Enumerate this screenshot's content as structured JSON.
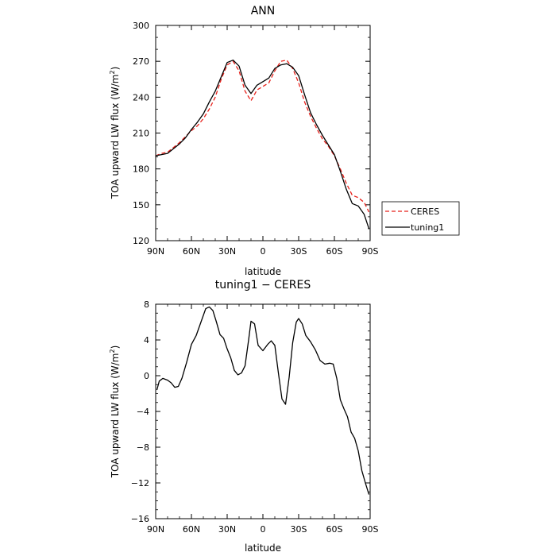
{
  "chart_data": [
    {
      "type": "line",
      "title": "ANN",
      "xlabel": "latitude",
      "ylabel": "TOA upward LW flux (W/m",
      "ylabel_sup": "2",
      "ylabel_close": ")",
      "xlim": [
        90,
        -90
      ],
      "ylim": [
        120,
        300
      ],
      "xticks": [
        90,
        60,
        30,
        0,
        -30,
        -60,
        -90
      ],
      "xtick_labels": [
        "90N",
        "60N",
        "30N",
        "0",
        "30S",
        "60S",
        "90S"
      ],
      "yticks": [
        120,
        150,
        180,
        210,
        240,
        270,
        300
      ],
      "ytick_labels": [
        "120",
        "150",
        "180",
        "210",
        "240",
        "270",
        "300"
      ],
      "legend_position": "outside-right",
      "series": [
        {
          "name": "CERES",
          "color": "#e8201a",
          "dash": "dashed",
          "x": [
            90,
            85,
            80,
            75,
            70,
            65,
            60,
            55,
            50,
            45,
            40,
            35,
            30,
            25,
            20,
            15,
            10,
            5,
            0,
            -5,
            -10,
            -15,
            -20,
            -25,
            -30,
            -35,
            -40,
            -45,
            -50,
            -55,
            -60,
            -65,
            -70,
            -75,
            -80,
            -85,
            -89
          ],
          "y": [
            191,
            193,
            194,
            198,
            202,
            207,
            212,
            216,
            222,
            230,
            240,
            255,
            267,
            270,
            262,
            245,
            237,
            246,
            249,
            252,
            262,
            270,
            271,
            264,
            252,
            236,
            224,
            214,
            205,
            199,
            191,
            180,
            168,
            158,
            156,
            152,
            144
          ]
        },
        {
          "name": "tuning1",
          "color": "#000000",
          "dash": "solid",
          "x": [
            90,
            85,
            80,
            75,
            70,
            65,
            60,
            55,
            50,
            45,
            40,
            35,
            30,
            25,
            20,
            15,
            10,
            5,
            0,
            -5,
            -10,
            -15,
            -20,
            -25,
            -30,
            -35,
            -40,
            -45,
            -50,
            -55,
            -60,
            -65,
            -70,
            -75,
            -80,
            -85,
            -89
          ],
          "y": [
            191,
            192,
            193,
            197,
            201,
            206,
            213,
            219,
            226,
            236,
            245,
            257,
            269,
            271,
            266,
            250,
            243,
            250,
            253,
            256,
            264,
            267,
            268,
            265,
            258,
            242,
            227,
            217,
            208,
            200,
            192,
            178,
            163,
            151,
            149,
            142,
            130
          ]
        }
      ]
    },
    {
      "type": "line",
      "title": "tuning1 − CERES",
      "xlabel": "latitude",
      "ylabel": "TOA upward LW flux (W/m",
      "ylabel_sup": "2",
      "ylabel_close": ")",
      "xlim": [
        90,
        -90
      ],
      "ylim": [
        -16,
        8
      ],
      "xticks": [
        90,
        60,
        30,
        0,
        -30,
        -60,
        -90
      ],
      "xtick_labels": [
        "90N",
        "60N",
        "30N",
        "0",
        "30S",
        "60S",
        "90S"
      ],
      "yticks": [
        -16,
        -12,
        -8,
        -4,
        0,
        4,
        8
      ],
      "ytick_labels": [
        "−16",
        "−12",
        "−8",
        "−4",
        "0",
        "4",
        "8"
      ],
      "series": [
        {
          "color": "#000000",
          "dash": "solid",
          "x": [
            89,
            87,
            84,
            80,
            77,
            74,
            71,
            68,
            64,
            60,
            56,
            52,
            48,
            45,
            42,
            39,
            36,
            33,
            30,
            27,
            24,
            21,
            18,
            15,
            12,
            10,
            7,
            4,
            0,
            -4,
            -7,
            -10,
            -13,
            -16,
            -19,
            -22,
            -25,
            -28,
            -30,
            -33,
            -36,
            -40,
            -44,
            -48,
            -52,
            -56,
            -59,
            -62,
            -65,
            -68,
            -71,
            -74,
            -77,
            -80,
            -83,
            -86,
            -89
          ],
          "y": [
            -1.6,
            -0.6,
            -0.3,
            -0.5,
            -0.8,
            -1.3,
            -1.2,
            -0.3,
            1.5,
            3.5,
            4.5,
            6.0,
            7.5,
            7.7,
            7.3,
            6.0,
            4.6,
            4.2,
            3.0,
            2.0,
            0.6,
            0.1,
            0.3,
            1.1,
            4.0,
            6.1,
            5.8,
            3.4,
            2.8,
            3.5,
            3.9,
            3.4,
            0.3,
            -2.6,
            -3.2,
            -0.2,
            3.7,
            6.0,
            6.4,
            5.8,
            4.5,
            3.8,
            2.9,
            1.7,
            1.3,
            1.4,
            1.3,
            -0.3,
            -2.7,
            -3.7,
            -4.6,
            -6.3,
            -7.0,
            -8.4,
            -10.6,
            -12.0,
            -13.3
          ]
        }
      ]
    }
  ]
}
